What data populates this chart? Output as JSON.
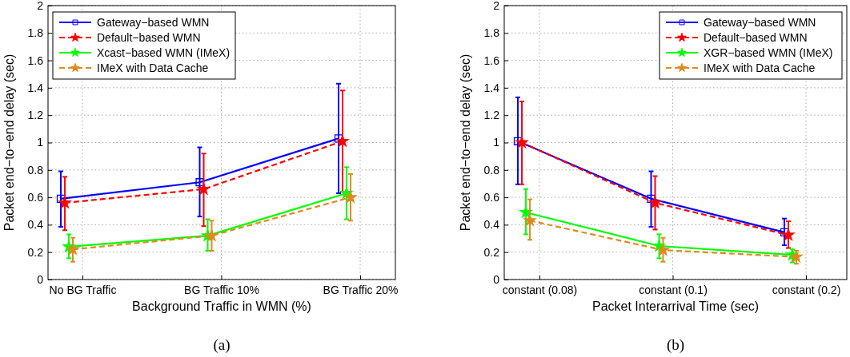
{
  "chart_data": [
    {
      "type": "line",
      "xlabel": "Background Traffic in WMN (%)",
      "ylabel": "Packet end−to−end delay (sec)",
      "annotations": [
        "(a)"
      ],
      "categories": [
        "No BG Traffic",
        "BG Traffic 10%",
        "BG Traffic 20%"
      ],
      "ylim": [
        0,
        2
      ],
      "yticks": [
        0,
        0.2,
        0.4,
        0.6,
        0.8,
        1,
        1.2,
        1.4,
        1.6,
        1.8,
        2
      ],
      "grid": true,
      "legend": "top left",
      "series": [
        {
          "name": "Gateway−based WMN",
          "color": "#0000ff",
          "line_style": "solid",
          "marker": "square",
          "values": [
            0.59,
            0.71,
            1.03
          ],
          "errors": [
            [
              0.385,
              0.79
            ],
            [
              0.46,
              0.965
            ],
            [
              0.63,
              1.43
            ]
          ]
        },
        {
          "name": "Default−based WMN",
          "color": "#ff0000",
          "line_style": "dashed",
          "marker": "star",
          "values": [
            0.56,
            0.66,
            1.01
          ],
          "errors": [
            [
              0.36,
              0.75
            ],
            [
              0.39,
              0.92
            ],
            [
              0.64,
              1.38
            ]
          ]
        },
        {
          "name": "Xcast−based WMN (IMeX)",
          "color": "#00ff00",
          "line_style": "solid",
          "marker": "star",
          "values": [
            0.24,
            0.32,
            0.63
          ],
          "errors": [
            [
              0.155,
              0.33
            ],
            [
              0.21,
              0.44
            ],
            [
              0.44,
              0.82
            ]
          ]
        },
        {
          "name": "IMeX with Data Cache",
          "color": "#e08a1e",
          "line_style": "dashed",
          "marker": "star",
          "values": [
            0.22,
            0.32,
            0.6
          ],
          "errors": [
            [
              0.13,
              0.305
            ],
            [
              0.21,
              0.43
            ],
            [
              0.43,
              0.77
            ]
          ]
        }
      ]
    },
    {
      "type": "line",
      "xlabel": "Packet Interarrival Time (sec)",
      "ylabel": "Packet end−to−end delay (sec)",
      "annotations": [
        "(b)"
      ],
      "categories": [
        "constant (0.08)",
        "constant (0.1)",
        "constant (0.2)"
      ],
      "ylim": [
        0,
        2
      ],
      "yticks": [
        0,
        0.2,
        0.4,
        0.6,
        0.8,
        1,
        1.2,
        1.4,
        1.6,
        1.8,
        2
      ],
      "grid": true,
      "legend": "top right",
      "series": [
        {
          "name": "Gateway−based WMN",
          "color": "#0000ff",
          "line_style": "solid",
          "marker": "square",
          "values": [
            1.01,
            0.59,
            0.345
          ],
          "errors": [
            [
              0.695,
              1.33
            ],
            [
              0.385,
              0.79
            ],
            [
              0.25,
              0.445
            ]
          ]
        },
        {
          "name": "Default−based WMN",
          "color": "#ff0000",
          "line_style": "dashed",
          "marker": "star",
          "values": [
            1.0,
            0.56,
            0.325
          ],
          "errors": [
            [
              0.695,
              1.3
            ],
            [
              0.365,
              0.755
            ],
            [
              0.23,
              0.425
            ]
          ]
        },
        {
          "name": "XGR−based WMN (IMeX)",
          "color": "#00ff00",
          "line_style": "solid",
          "marker": "star",
          "values": [
            0.49,
            0.245,
            0.18
          ],
          "errors": [
            [
              0.33,
              0.66
            ],
            [
              0.155,
              0.33
            ],
            [
              0.125,
              0.22
            ]
          ]
        },
        {
          "name": "IMeX with Data Cache",
          "color": "#e08a1e",
          "line_style": "dashed",
          "marker": "star",
          "values": [
            0.43,
            0.215,
            0.165
          ],
          "errors": [
            [
              0.29,
              0.585
            ],
            [
              0.13,
              0.305
            ],
            [
              0.115,
              0.21
            ]
          ]
        }
      ]
    }
  ]
}
